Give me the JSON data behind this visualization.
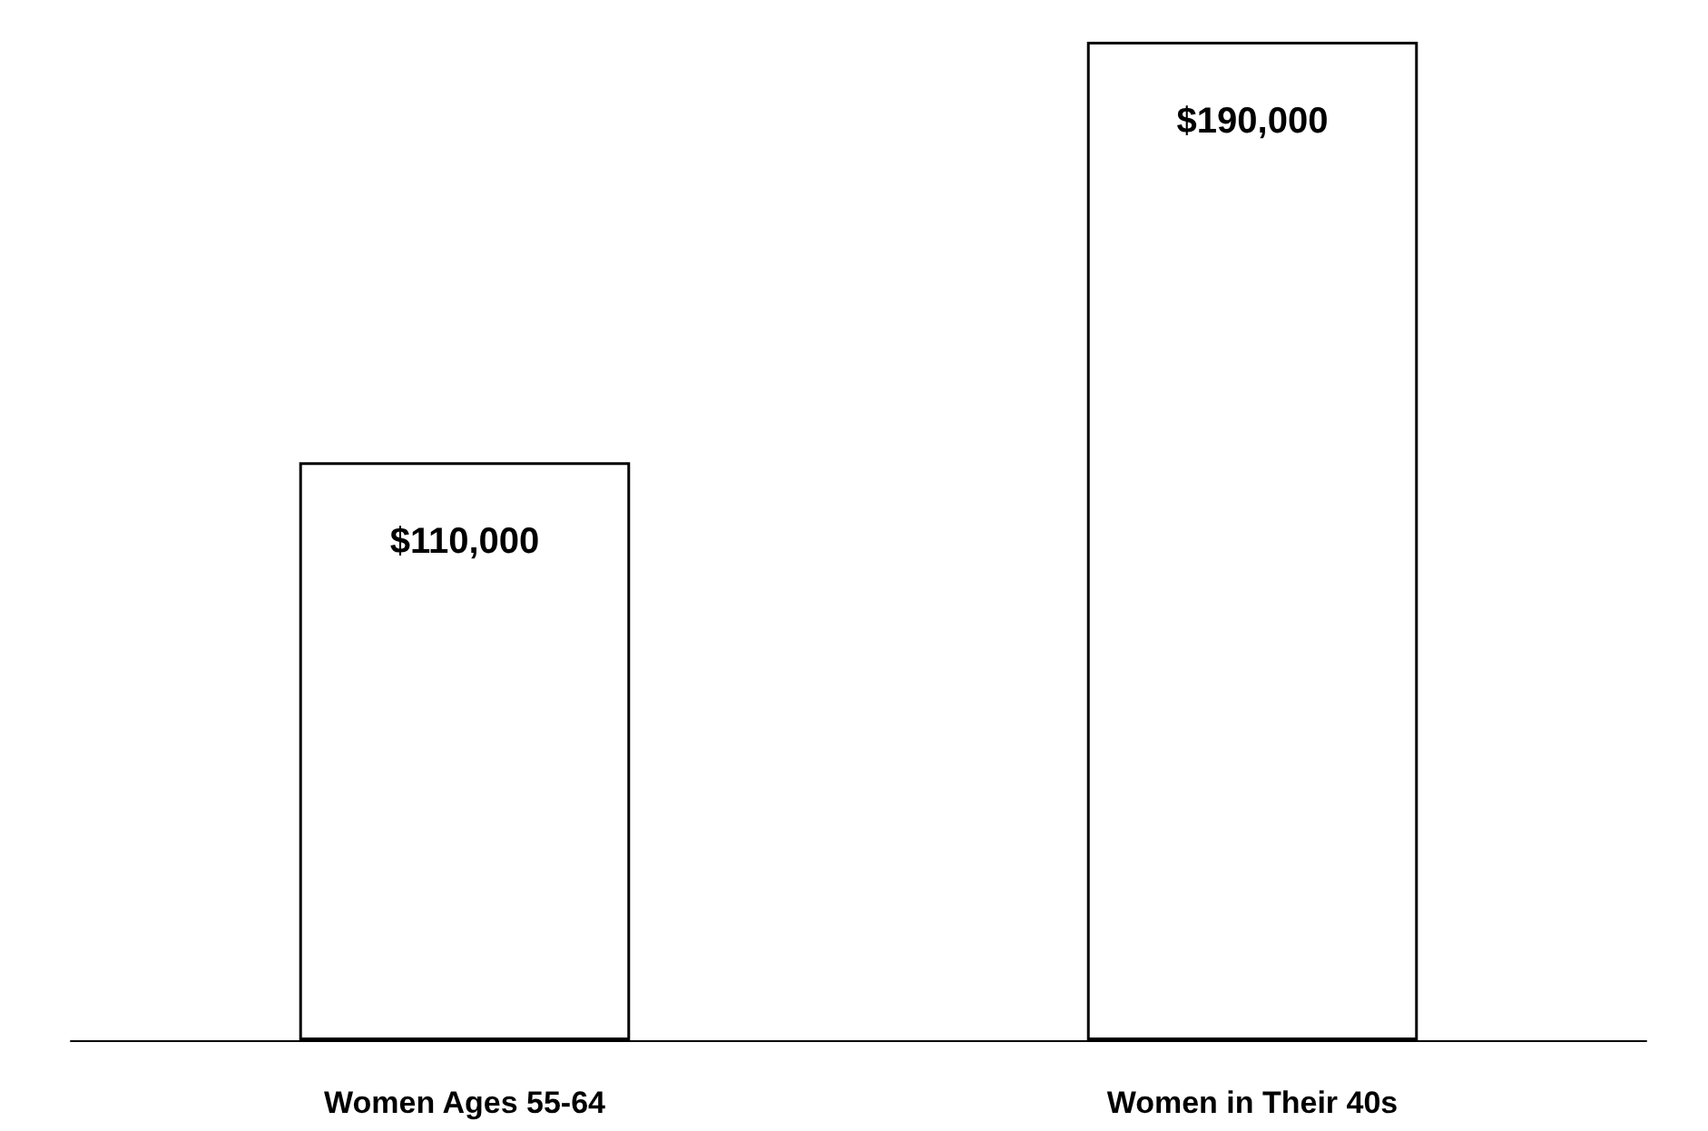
{
  "chart_data": {
    "type": "bar",
    "categories": [
      "Women Ages 55-64",
      "Women in Their 40s"
    ],
    "values": [
      110000,
      190000
    ],
    "value_labels": [
      "$110,000",
      "$190,000"
    ],
    "color": "#ffffff"
  }
}
